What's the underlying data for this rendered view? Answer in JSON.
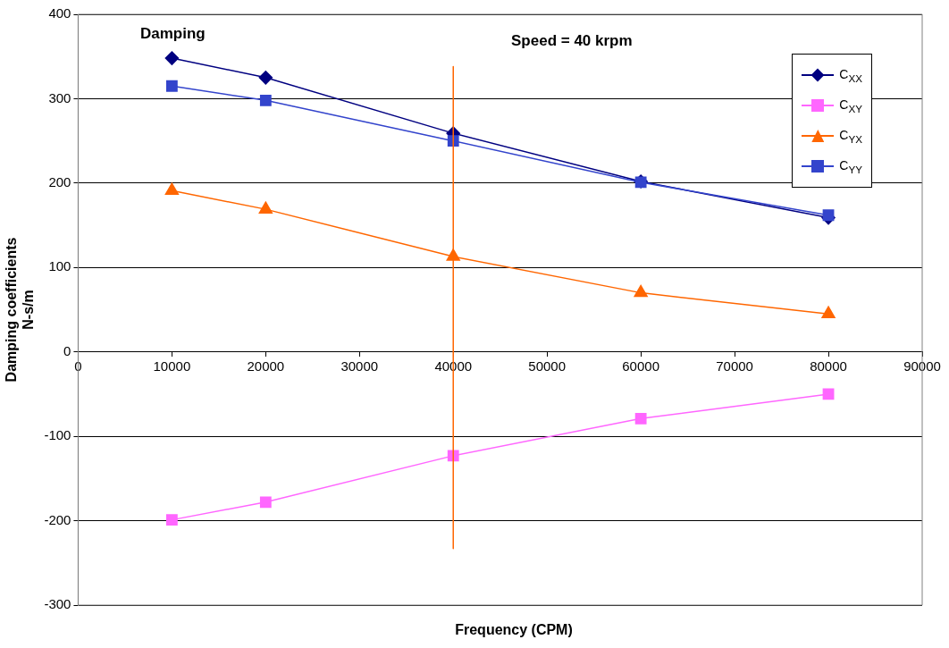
{
  "chart_data": {
    "type": "line",
    "xlabel": "Frequency (CPM)",
    "ylabel": "Damping coefficients\nN-s/m",
    "annotations": [
      "Damping",
      "Speed = 40 krpm"
    ],
    "x": [
      10000,
      20000,
      40000,
      60000,
      80000
    ],
    "series": [
      {
        "name": "C$_{XX}$",
        "color": "#000080",
        "marker": "diamond",
        "values": [
          348,
          325,
          259,
          202,
          159
        ]
      },
      {
        "name": "C$_{XY}$",
        "color": "#ff66ff",
        "marker": "square",
        "values": [
          -199,
          -178,
          -123,
          -79,
          -50
        ]
      },
      {
        "name": "C$_{YX}$",
        "color": "#ff6600",
        "marker": "triangle",
        "values": [
          191,
          169,
          113,
          70,
          45
        ]
      },
      {
        "name": "C$_{YY}$",
        "color": "#3344cc",
        "marker": "square",
        "values": [
          315,
          298,
          250,
          201,
          162
        ]
      },
      {
        "color": "#ff6600",
        "marker": "none",
        "x": [
          40000,
          40000
        ],
        "values": [
          338,
          -233
        ]
      }
    ],
    "xlim": [
      0,
      90000
    ],
    "xticks": [
      0,
      10000,
      20000,
      30000,
      40000,
      50000,
      60000,
      70000,
      80000,
      90000
    ],
    "ylim": [
      -300,
      400
    ],
    "yticks": [
      -300,
      -200,
      -100,
      0,
      100,
      200,
      300,
      400
    ],
    "grid": "y",
    "legend": "top right"
  }
}
